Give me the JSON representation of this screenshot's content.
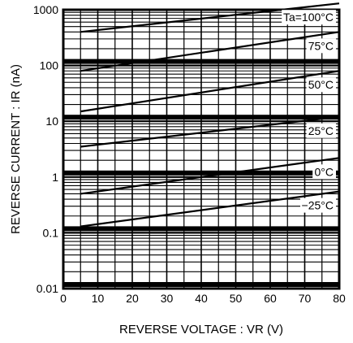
{
  "chart_data": {
    "type": "line",
    "title": "",
    "xlabel": "REVERSE VOLTAGE : VR (V)",
    "ylabel": "REVERSE CURRENT : IR (nA)",
    "xlim": [
      0,
      80
    ],
    "ylim": [
      0.01,
      1000
    ],
    "yscale": "log",
    "grid": true,
    "x_ticks": [
      "0",
      "10",
      "20",
      "30",
      "40",
      "50",
      "60",
      "70",
      "80"
    ],
    "y_ticks": [
      "0.01",
      "0.1",
      "1",
      "10",
      "100",
      "1000"
    ],
    "series": [
      {
        "name": "Ta=100°C",
        "x": [
          5,
          80
        ],
        "y": [
          400,
          1300
        ]
      },
      {
        "name": "75°C",
        "x": [
          5,
          80
        ],
        "y": [
          80,
          400
        ]
      },
      {
        "name": "50°C",
        "x": [
          5,
          80
        ],
        "y": [
          15,
          80
        ]
      },
      {
        "name": "25°C",
        "x": [
          5,
          80
        ],
        "y": [
          3.5,
          12
        ]
      },
      {
        "name": "0°C",
        "x": [
          5,
          80
        ],
        "y": [
          0.5,
          2.2
        ]
      },
      {
        "name": "−25°C",
        "x": [
          5,
          80
        ],
        "y": [
          0.13,
          0.55
        ]
      }
    ]
  }
}
